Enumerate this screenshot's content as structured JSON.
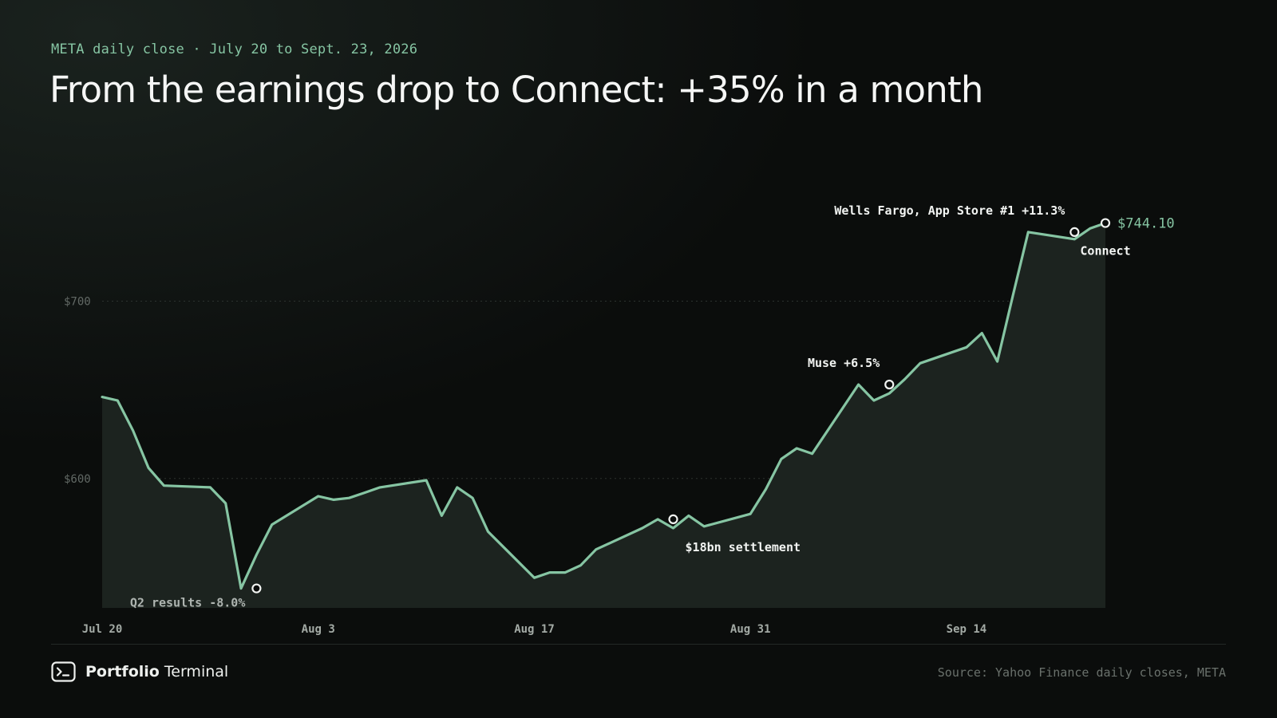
{
  "header": {
    "kicker": "META daily close · July 20 to Sept. 23, 2026",
    "title": "From the earnings drop to Connect: +35% in a month"
  },
  "footer": {
    "brand_strong": "Portfolio",
    "brand_light": "Terminal",
    "brand_icon": "terminal-prompt-icon",
    "source": "Source: Yahoo Finance daily closes, META"
  },
  "colors": {
    "line": "#86c5a3",
    "area": "#1c231f",
    "background": "#0b0d0c",
    "tick_text": "#626965",
    "annotation_text": "#f2f4f2",
    "gridline": "#2c332f"
  },
  "chart_data": {
    "type": "area",
    "x_start": "2026-07-20",
    "x": [
      0,
      1,
      2,
      3,
      4,
      7,
      8,
      9,
      10,
      11,
      14,
      15,
      16,
      17,
      18,
      21,
      22,
      23,
      24,
      25,
      28,
      29,
      30,
      31,
      32,
      35,
      36,
      37,
      38,
      39,
      42,
      43,
      44,
      45,
      46,
      49,
      50,
      51,
      52,
      53,
      56,
      57,
      58,
      59,
      60,
      63,
      64,
      65
    ],
    "values": [
      646,
      644,
      627,
      606,
      596,
      595,
      586,
      538,
      557,
      574,
      590,
      588,
      589,
      592,
      595,
      599,
      579,
      595,
      589,
      570,
      544,
      547,
      547,
      551,
      560,
      572,
      577,
      572,
      579,
      573,
      580,
      594,
      611,
      617,
      614,
      653,
      644,
      648,
      656,
      665,
      674,
      682,
      666,
      703,
      739,
      735,
      741,
      744.1
    ],
    "x_ticks": [
      {
        "x": 0,
        "label": "Jul 20"
      },
      {
        "x": 14,
        "label": "Aug 3"
      },
      {
        "x": 28,
        "label": "Aug 17"
      },
      {
        "x": 42,
        "label": "Aug 31"
      },
      {
        "x": 56,
        "label": "Sep 14"
      }
    ],
    "y_ticks": [
      {
        "y": 700,
        "label": "$700"
      },
      {
        "y": 600,
        "label": "$600"
      }
    ],
    "xlim": [
      0,
      65
    ],
    "ylim": [
      527,
      770
    ],
    "grid": "horizontal dotted",
    "last_value_label": "$744.10",
    "annotations": [
      {
        "x": 10,
        "y": 538,
        "label": "Q2 results -8.0%",
        "anchor": "end",
        "position": "below",
        "muted": true
      },
      {
        "x": 37,
        "y": 577,
        "label": "$18bn settlement",
        "anchor": "start",
        "position": "below",
        "muted": false
      },
      {
        "x": 51,
        "y": 653,
        "label": "Muse +6.5%",
        "anchor": "end",
        "position": "above",
        "muted": false
      },
      {
        "x": 63,
        "y": 739,
        "label": "Wells Fargo, App Store #1 +11.3%",
        "anchor": "end",
        "position": "above",
        "muted": false
      },
      {
        "x": 65,
        "y": 744.1,
        "label": "Connect",
        "anchor": "middle",
        "position": "below",
        "muted": false
      }
    ]
  }
}
